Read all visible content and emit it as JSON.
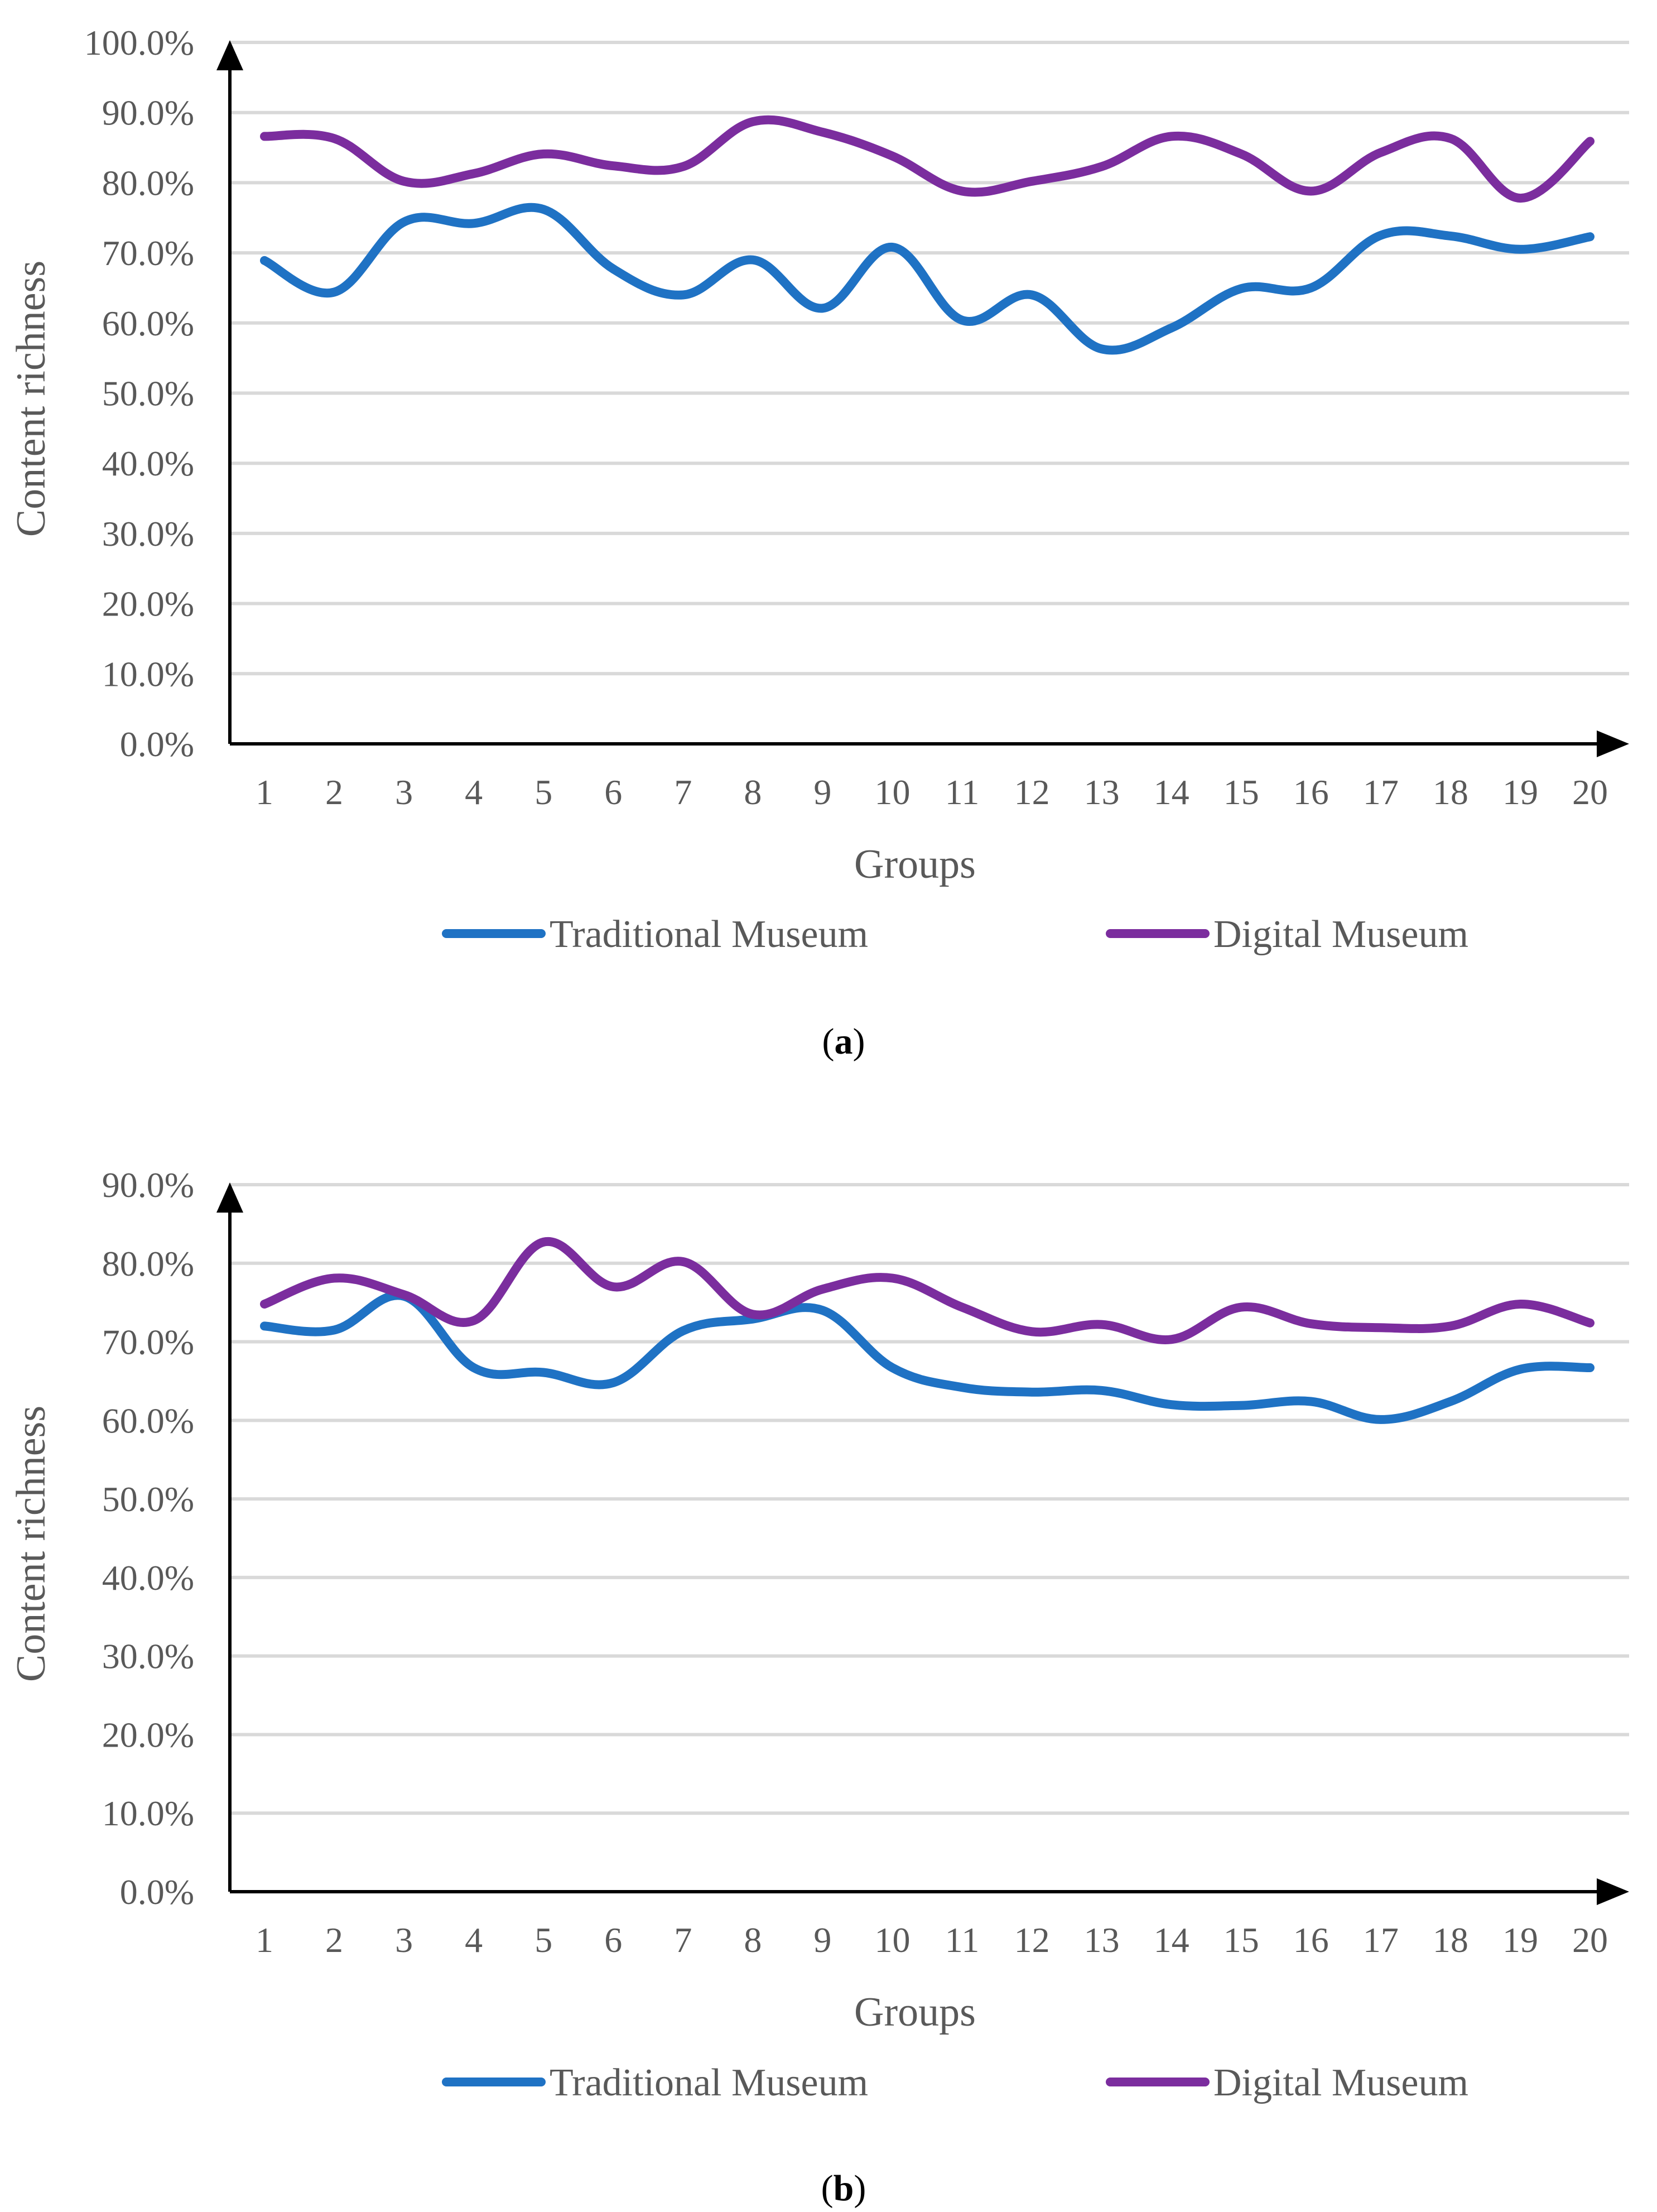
{
  "chart_data": [
    {
      "type": "line",
      "panel": "a",
      "caption_letter": "a",
      "xlabel": "Groups",
      "ylabel": "Content richness",
      "ylim": [
        0,
        100
      ],
      "y_ticks": [
        "0.0%",
        "10.0%",
        "20.0%",
        "30.0%",
        "40.0%",
        "50.0%",
        "60.0%",
        "70.0%",
        "80.0%",
        "90.0%",
        "100.0%"
      ],
      "categories": [
        "1",
        "2",
        "3",
        "4",
        "5",
        "6",
        "7",
        "8",
        "9",
        "10",
        "11",
        "12",
        "13",
        "14",
        "15",
        "16",
        "17",
        "18",
        "19",
        "20"
      ],
      "grid": true,
      "legend_position": "bottom",
      "series": [
        {
          "name": "Traditional Museum",
          "color": "#1f72c4",
          "values": [
            68.9,
            64.4,
            74.4,
            74.2,
            76.2,
            67.7,
            64.0,
            69.0,
            62.1,
            70.8,
            60.4,
            64.0,
            56.3,
            59.3,
            64.9,
            65.0,
            72.5,
            72.4,
            70.5,
            72.3
          ]
        },
        {
          "name": "Digital Museum",
          "color": "#7b2d9e",
          "values": [
            86.6,
            86.3,
            80.2,
            81.3,
            84.1,
            82.4,
            82.3,
            88.7,
            87.2,
            83.8,
            78.8,
            80.2,
            82.3,
            86.6,
            84.1,
            78.8,
            84.3,
            86.3,
            77.8,
            85.9
          ]
        }
      ]
    },
    {
      "type": "line",
      "panel": "b",
      "caption_letter": "b",
      "xlabel": "Groups",
      "ylabel": "Content richness",
      "ylim": [
        0,
        90
      ],
      "y_ticks": [
        "0.0%",
        "10.0%",
        "20.0%",
        "30.0%",
        "40.0%",
        "50.0%",
        "60.0%",
        "70.0%",
        "80.0%",
        "90.0%"
      ],
      "categories": [
        "1",
        "2",
        "3",
        "4",
        "5",
        "6",
        "7",
        "8",
        "9",
        "10",
        "11",
        "12",
        "13",
        "14",
        "15",
        "16",
        "17",
        "18",
        "19",
        "20"
      ],
      "grid": true,
      "legend_position": "bottom",
      "series": [
        {
          "name": "Traditional Museum",
          "color": "#1f72c4",
          "values": [
            72.0,
            71.5,
            75.8,
            66.7,
            66.1,
            64.8,
            71.4,
            72.9,
            74.0,
            66.7,
            64.2,
            63.6,
            63.8,
            62.0,
            61.9,
            62.4,
            60.1,
            62.4,
            66.5,
            66.7
          ]
        },
        {
          "name": "Digital Museum",
          "color": "#7b2d9e",
          "values": [
            74.8,
            78.1,
            76.0,
            72.7,
            82.7,
            77.0,
            80.2,
            73.5,
            76.7,
            78.1,
            74.4,
            71.3,
            72.2,
            70.3,
            74.4,
            72.3,
            71.8,
            72.0,
            74.8,
            72.4
          ]
        }
      ]
    }
  ]
}
